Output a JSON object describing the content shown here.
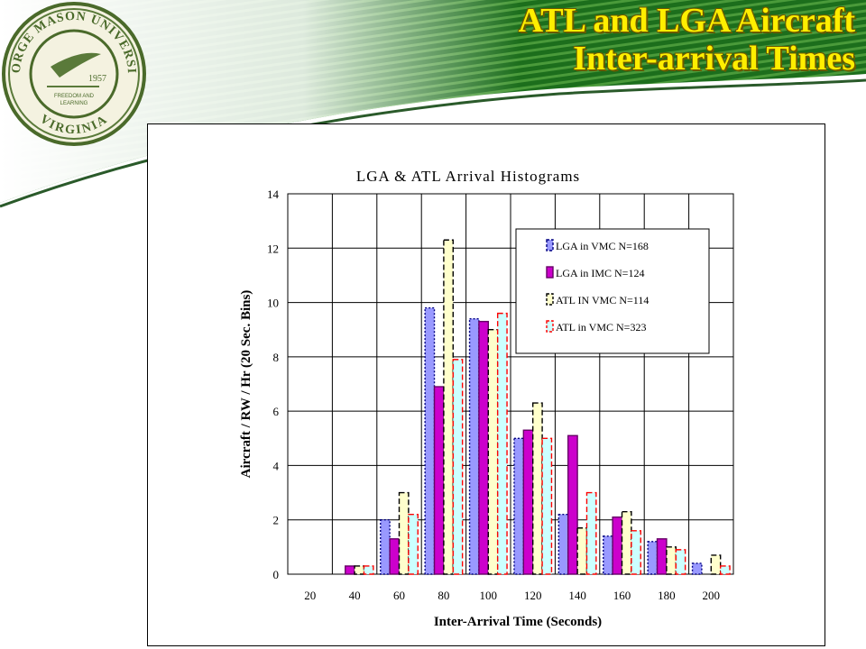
{
  "slide": {
    "title_line1": "ATL and LGA Aircraft",
    "title_line2": "Inter-arrival Times",
    "colors": {
      "banner_green": "#1e6b1e",
      "title_yellow": "#ffee00"
    }
  },
  "logo": {
    "ring_top": "GEORGE MASON UNIVERSITY",
    "ring_bottom": "VIRGINIA",
    "year": "1957",
    "motto_line1": "FREEDOM AND",
    "motto_line2": "LEARNING"
  },
  "chart_data": {
    "type": "bar",
    "title": "LGA & ATL Arrival Histograms",
    "xlabel": "Inter-Arrival Time (Seconds)",
    "ylabel": "Aircraft / RW / Hr (20 Sec. Bins)",
    "categories": [
      "20",
      "40",
      "60",
      "80",
      "100",
      "120",
      "140",
      "160",
      "180",
      "200"
    ],
    "ylim": [
      0,
      14
    ],
    "yticks": [
      0,
      2,
      4,
      6,
      8,
      10,
      12,
      14
    ],
    "grid": true,
    "legend_position": "top-right",
    "series": [
      {
        "name": "LGA in VMC N=168",
        "values": [
          0,
          0,
          2.0,
          9.8,
          9.4,
          5.0,
          2.2,
          1.4,
          1.2,
          0.4
        ],
        "fill": "#9999ff",
        "stroke": "#000080",
        "dash": "2,2"
      },
      {
        "name": "LGA in IMC N=124",
        "values": [
          0,
          0.3,
          1.3,
          6.9,
          9.3,
          5.3,
          5.1,
          2.1,
          1.3,
          0
        ],
        "fill": "#cc00cc",
        "stroke": "#660066",
        "dash": ""
      },
      {
        "name": "ATL IN VMC N=114",
        "values": [
          0,
          0.3,
          3.0,
          12.3,
          9.0,
          6.3,
          1.7,
          2.3,
          1.0,
          0.7
        ],
        "fill": "#ffffcc",
        "stroke": "#000000",
        "dash": "6,3"
      },
      {
        "name": "ATL in VMC N=323",
        "values": [
          0,
          0.3,
          2.2,
          7.9,
          9.6,
          5.0,
          3.0,
          1.6,
          0.9,
          0.3
        ],
        "fill": "#ccffff",
        "stroke": "#ff0000",
        "dash": "6,3"
      }
    ]
  }
}
